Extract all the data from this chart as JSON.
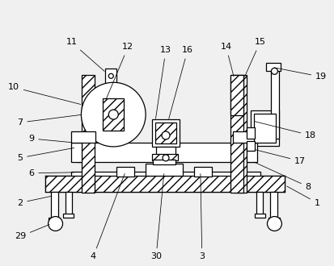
{
  "bg_color": "#f0f0f0",
  "line_color": "#000000",
  "figsize": [
    4.13,
    3.3
  ],
  "dpi": 100,
  "lw": 0.9
}
